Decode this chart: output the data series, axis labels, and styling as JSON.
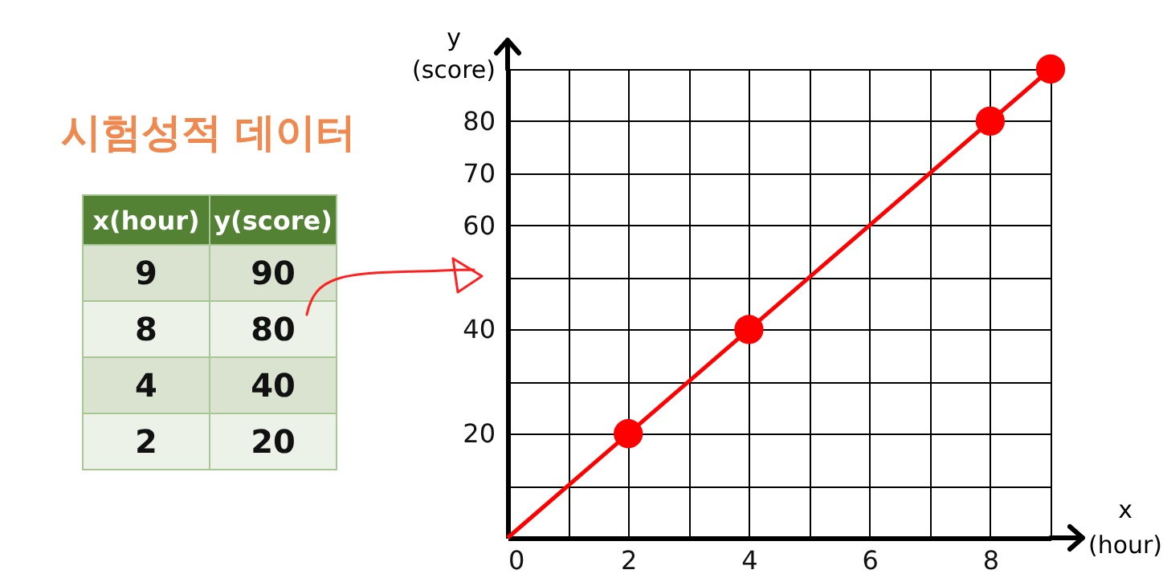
{
  "chart_data": [
    {
      "type": "other",
      "title": "시험성적 데이터",
      "annotations": [
        "x(hour)",
        "y(score)",
        "9",
        "90",
        "8",
        "80",
        "4",
        "40",
        "2",
        "20"
      ]
    },
    {
      "type": "scatter",
      "xlabel": "x (hour)",
      "ylabel": "y (score)",
      "xlim": [
        0,
        9
      ],
      "ylim": [
        0,
        90
      ],
      "xticks": [
        0,
        {
          "value": 1,
          "label": null
        },
        2,
        {
          "value": 3,
          "label": null
        },
        4,
        {
          "value": 5,
          "label": null
        },
        6,
        {
          "value": 7,
          "label": null
        },
        8,
        {
          "value": 9,
          "label": null
        }
      ],
      "yticks": [
        {
          "value": 0,
          "label": null
        },
        {
          "value": 10,
          "label": null
        },
        20,
        {
          "value": 30,
          "label": null
        },
        40,
        {
          "value": 50,
          "label": null
        },
        60,
        70,
        80,
        {
          "value": 90,
          "label": null
        }
      ],
      "grid": true,
      "series": [
        {
          "type": "line",
          "color": "#ff0000",
          "x": [
            0,
            9
          ],
          "values": [
            0,
            90
          ]
        },
        {
          "color": "#ff0000",
          "marker": "circle",
          "x": [
            9,
            8,
            4,
            2
          ],
          "values": [
            90,
            80,
            40,
            20
          ]
        }
      ]
    }
  ]
}
